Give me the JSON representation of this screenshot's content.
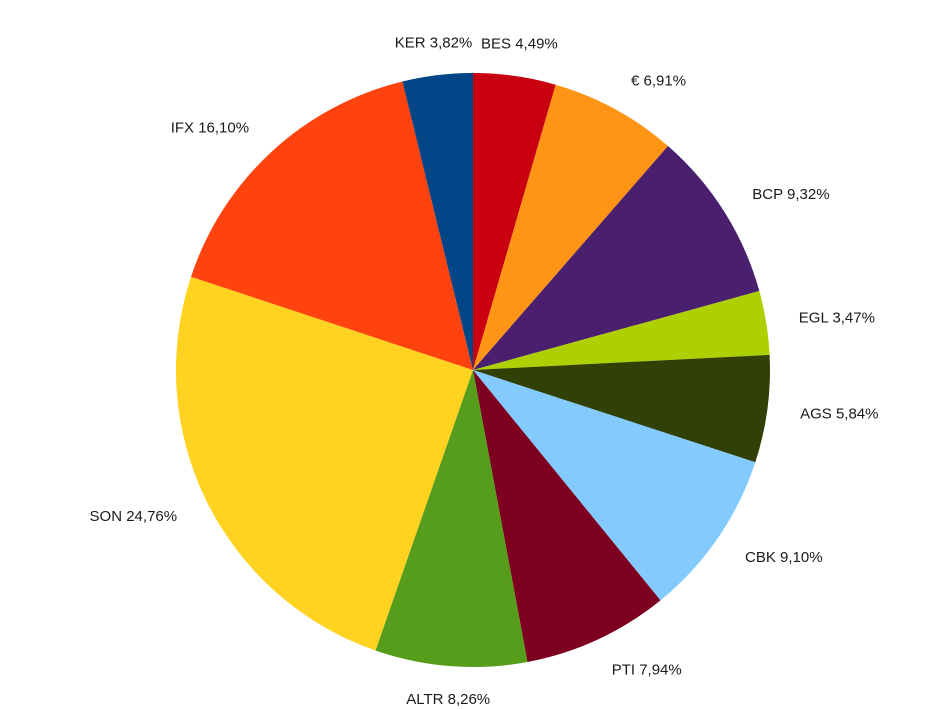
{
  "chart_data": {
    "type": "pie",
    "start_angle_deg": 0,
    "direction": "clockwise",
    "slices": [
      {
        "label": "BES",
        "display": "BES 4,49%",
        "value": 4.49,
        "color": "#c8000f"
      },
      {
        "label": "€",
        "display": "€ 6,91%",
        "value": 6.91,
        "color": "#ff9415"
      },
      {
        "label": "BCP",
        "display": "BCP 9,32%",
        "value": 9.32,
        "color": "#4a1f6e"
      },
      {
        "label": "EGL",
        "display": "EGL 3,47%",
        "value": 3.47,
        "color": "#aecf00"
      },
      {
        "label": "AGS",
        "display": "AGS 5,84%",
        "value": 5.84,
        "color": "#314004"
      },
      {
        "label": "CBK",
        "display": "CBK 9,10%",
        "value": 9.1,
        "color": "#83caff"
      },
      {
        "label": "PTI",
        "display": "PTI 7,94%",
        "value": 7.94,
        "color": "#7e0021"
      },
      {
        "label": "ALTR",
        "display": "ALTR 8,26%",
        "value": 8.26,
        "color": "#579d1c"
      },
      {
        "label": "SON",
        "display": "SON 24,76%",
        "value": 24.76,
        "color": "#ffd320"
      },
      {
        "label": "IFX",
        "display": "IFX 16,10%",
        "value": 16.1,
        "color": "#ff420e"
      },
      {
        "label": "KER",
        "display": "KER 3,82%",
        "value": 3.82,
        "color": "#004586"
      }
    ]
  }
}
